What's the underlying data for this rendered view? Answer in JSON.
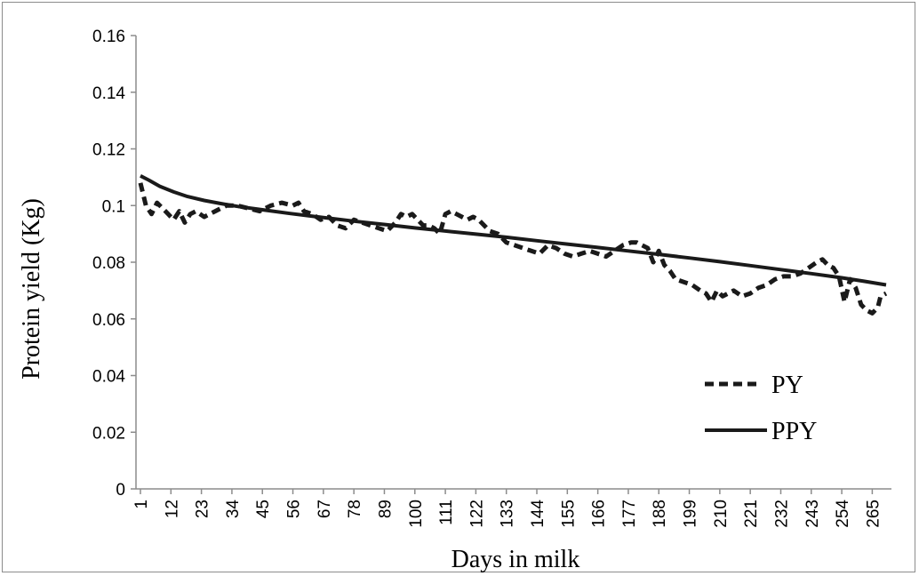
{
  "chart_data": {
    "type": "line",
    "title": "",
    "xlabel": "Days in milk",
    "ylabel": "Protein yield (Kg)",
    "ylim": [
      0,
      0.16
    ],
    "xlim": [
      1,
      270
    ],
    "y_ticks": [
      0,
      0.02,
      0.04,
      0.06,
      0.08,
      0.1,
      0.12,
      0.14,
      0.16
    ],
    "y_tick_labels": [
      "0",
      "0.02",
      "0.04",
      "0.06",
      "0.08",
      "0.1",
      "0.12",
      "0.14",
      "0.16"
    ],
    "x_tick_labels": [
      "1",
      "12",
      "23",
      "34",
      "45",
      "56",
      "67",
      "78",
      "89",
      "100",
      "111",
      "122",
      "133",
      "144",
      "155",
      "166",
      "177",
      "188",
      "199",
      "210",
      "221",
      "232",
      "243",
      "254",
      "265"
    ],
    "grid": false,
    "legend_position": "bottom-right",
    "series": [
      {
        "name": "PY",
        "style": "dashed",
        "color": "#1a1a1a",
        "x": [
          1,
          3,
          5,
          7,
          9,
          11,
          13,
          15,
          17,
          19,
          21,
          24,
          28,
          32,
          36,
          40,
          44,
          48,
          52,
          56,
          58,
          60,
          63,
          66,
          69,
          72,
          75,
          78,
          81,
          84,
          87,
          90,
          93,
          95,
          97,
          99,
          101,
          103,
          105,
          107,
          109,
          111,
          113,
          115,
          117,
          119,
          121,
          123,
          125,
          127,
          130,
          133,
          136,
          139,
          142,
          145,
          148,
          151,
          154,
          157,
          160,
          163,
          166,
          169,
          172,
          175,
          178,
          180,
          182,
          184,
          186,
          188,
          190,
          192,
          194,
          197,
          200,
          203,
          205,
          207,
          209,
          211,
          213,
          215,
          218,
          221,
          224,
          227,
          230,
          233,
          236,
          239,
          242,
          245,
          247,
          249,
          251,
          253,
          255,
          257,
          259,
          261,
          263,
          265,
          267,
          268,
          270
        ],
        "y": [
          0.108,
          0.1,
          0.097,
          0.101,
          0.099,
          0.097,
          0.095,
          0.098,
          0.094,
          0.097,
          0.098,
          0.096,
          0.098,
          0.1,
          0.1,
          0.099,
          0.098,
          0.1,
          0.101,
          0.1,
          0.101,
          0.098,
          0.097,
          0.095,
          0.096,
          0.093,
          0.092,
          0.095,
          0.094,
          0.093,
          0.092,
          0.091,
          0.094,
          0.097,
          0.096,
          0.097,
          0.095,
          0.093,
          0.093,
          0.092,
          0.09,
          0.097,
          0.098,
          0.097,
          0.096,
          0.095,
          0.096,
          0.095,
          0.093,
          0.091,
          0.09,
          0.087,
          0.086,
          0.085,
          0.084,
          0.083,
          0.086,
          0.085,
          0.083,
          0.082,
          0.083,
          0.084,
          0.083,
          0.082,
          0.084,
          0.086,
          0.087,
          0.087,
          0.086,
          0.085,
          0.08,
          0.084,
          0.079,
          0.077,
          0.074,
          0.073,
          0.072,
          0.07,
          0.069,
          0.066,
          0.07,
          0.068,
          0.069,
          0.07,
          0.068,
          0.069,
          0.071,
          0.072,
          0.074,
          0.075,
          0.075,
          0.076,
          0.078,
          0.08,
          0.081,
          0.079,
          0.078,
          0.075,
          0.066,
          0.074,
          0.071,
          0.065,
          0.063,
          0.062,
          0.064,
          0.068,
          0.069
        ]
      },
      {
        "name": "PPY",
        "style": "solid",
        "color": "#1a1a1a",
        "x": [
          1,
          4,
          8,
          13,
          18,
          24,
          30,
          36,
          45,
          55,
          65,
          78,
          90,
          100,
          111,
          122,
          133,
          144,
          155,
          166,
          177,
          188,
          199,
          210,
          221,
          232,
          243,
          254,
          262,
          270
        ],
        "y": [
          0.1105,
          0.109,
          0.1068,
          0.1048,
          0.1032,
          0.1018,
          0.1007,
          0.0997,
          0.0985,
          0.0972,
          0.096,
          0.0945,
          0.0932,
          0.0921,
          0.091,
          0.0899,
          0.0888,
          0.0876,
          0.0864,
          0.0852,
          0.084,
          0.0828,
          0.0815,
          0.0802,
          0.0788,
          0.0774,
          0.076,
          0.0745,
          0.0733,
          0.072
        ]
      }
    ]
  }
}
